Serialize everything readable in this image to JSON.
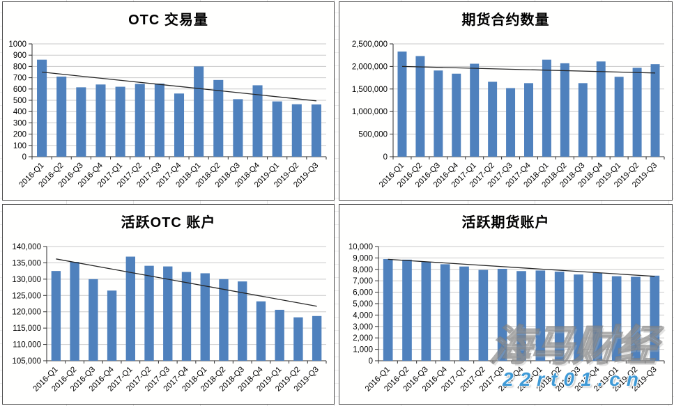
{
  "colors": {
    "bar_fill": "#4F81BD",
    "gridline": "#c9c9c9",
    "axis": "#2d2d2d",
    "trendline": "#262626",
    "panel_border": "#4d4d4d",
    "title_text": "#000000",
    "watermark_url_blue": "#3f9ad6"
  },
  "watermark": {
    "brand": "海马财经",
    "url": "22rt01.cn"
  },
  "chart_data": [
    {
      "type": "bar",
      "title": "OTC 交易量",
      "categories": [
        "2016-Q1",
        "2016-Q2",
        "2016-Q3",
        "2016-Q4",
        "2017-Q1",
        "2017-Q2",
        "2017-Q3",
        "2017-Q4",
        "2018-Q1",
        "2018-Q2",
        "2018-Q3",
        "2018-Q4",
        "2019-Q1",
        "2019-Q2",
        "2019-Q3"
      ],
      "values": [
        860,
        710,
        615,
        640,
        620,
        645,
        648,
        560,
        800,
        680,
        510,
        633,
        490,
        465,
        463
      ],
      "trendline": {
        "start": 750,
        "end": 495
      },
      "xlabel": "",
      "ylabel": "",
      "ylim": [
        0,
        1000
      ],
      "ytick_step": 100,
      "thousands_separator": false,
      "grid": true,
      "legend": "none"
    },
    {
      "type": "bar",
      "title": "期货合约数量",
      "categories": [
        "2016-Q1",
        "2016-Q2",
        "2016-Q3",
        "2016-Q4",
        "2017-Q1",
        "2017-Q2",
        "2017-Q3",
        "2017-Q4",
        "2018-Q1",
        "2018-Q2",
        "2018-Q3",
        "2018-Q4",
        "2019-Q1",
        "2019-Q2",
        "2019-Q3"
      ],
      "values": [
        2330000,
        2230000,
        1910000,
        1840000,
        2060000,
        1660000,
        1520000,
        1630000,
        2150000,
        2070000,
        1630000,
        2110000,
        1770000,
        1970000,
        2050000
      ],
      "trendline": {
        "start": 2000000,
        "end": 1855000
      },
      "xlabel": "",
      "ylabel": "",
      "ylim": [
        0,
        2500000
      ],
      "ytick_step": 500000,
      "thousands_separator": true,
      "grid": true,
      "legend": "none"
    },
    {
      "type": "bar",
      "title": "活跃OTC 账户",
      "categories": [
        "2016-Q1",
        "2016-Q2",
        "2016-Q3",
        "2016-Q4",
        "2017-Q1",
        "2017-Q2",
        "2017-Q3",
        "2017-Q4",
        "2018-Q1",
        "2018-Q2",
        "2018-Q3",
        "2018-Q4",
        "2019-Q1",
        "2019-Q2",
        "2019-Q3"
      ],
      "values": [
        132500,
        135300,
        130000,
        126500,
        136900,
        134100,
        133900,
        132200,
        131800,
        130000,
        129300,
        123200,
        120600,
        118300,
        118700
      ],
      "trendline": {
        "start": 136200,
        "end": 121700
      },
      "xlabel": "",
      "ylabel": "",
      "ylim": [
        105000,
        140000
      ],
      "ytick_step": 5000,
      "thousands_separator": true,
      "grid": true,
      "legend": "none"
    },
    {
      "type": "bar",
      "title": "活跃期货账户",
      "categories": [
        "2016-Q1",
        "2016-Q2",
        "2016-Q3",
        "2016-Q4",
        "2017-Q1",
        "2017-Q2",
        "2017-Q3",
        "2017-Q4",
        "2018-Q1",
        "2018-Q2",
        "2018-Q3",
        "2018-Q4",
        "2019-Q1",
        "2019-Q2",
        "2019-Q3"
      ],
      "values": [
        8900,
        8850,
        8650,
        8450,
        8250,
        7950,
        8050,
        7850,
        7900,
        7800,
        7550,
        7700,
        7400,
        7350,
        7450
      ],
      "trendline": {
        "start": 8880,
        "end": 7390
      },
      "xlabel": "",
      "ylabel": "",
      "ylim": [
        0,
        10000
      ],
      "ytick_step": 1000,
      "thousands_separator": true,
      "grid": true,
      "legend": "none"
    }
  ]
}
